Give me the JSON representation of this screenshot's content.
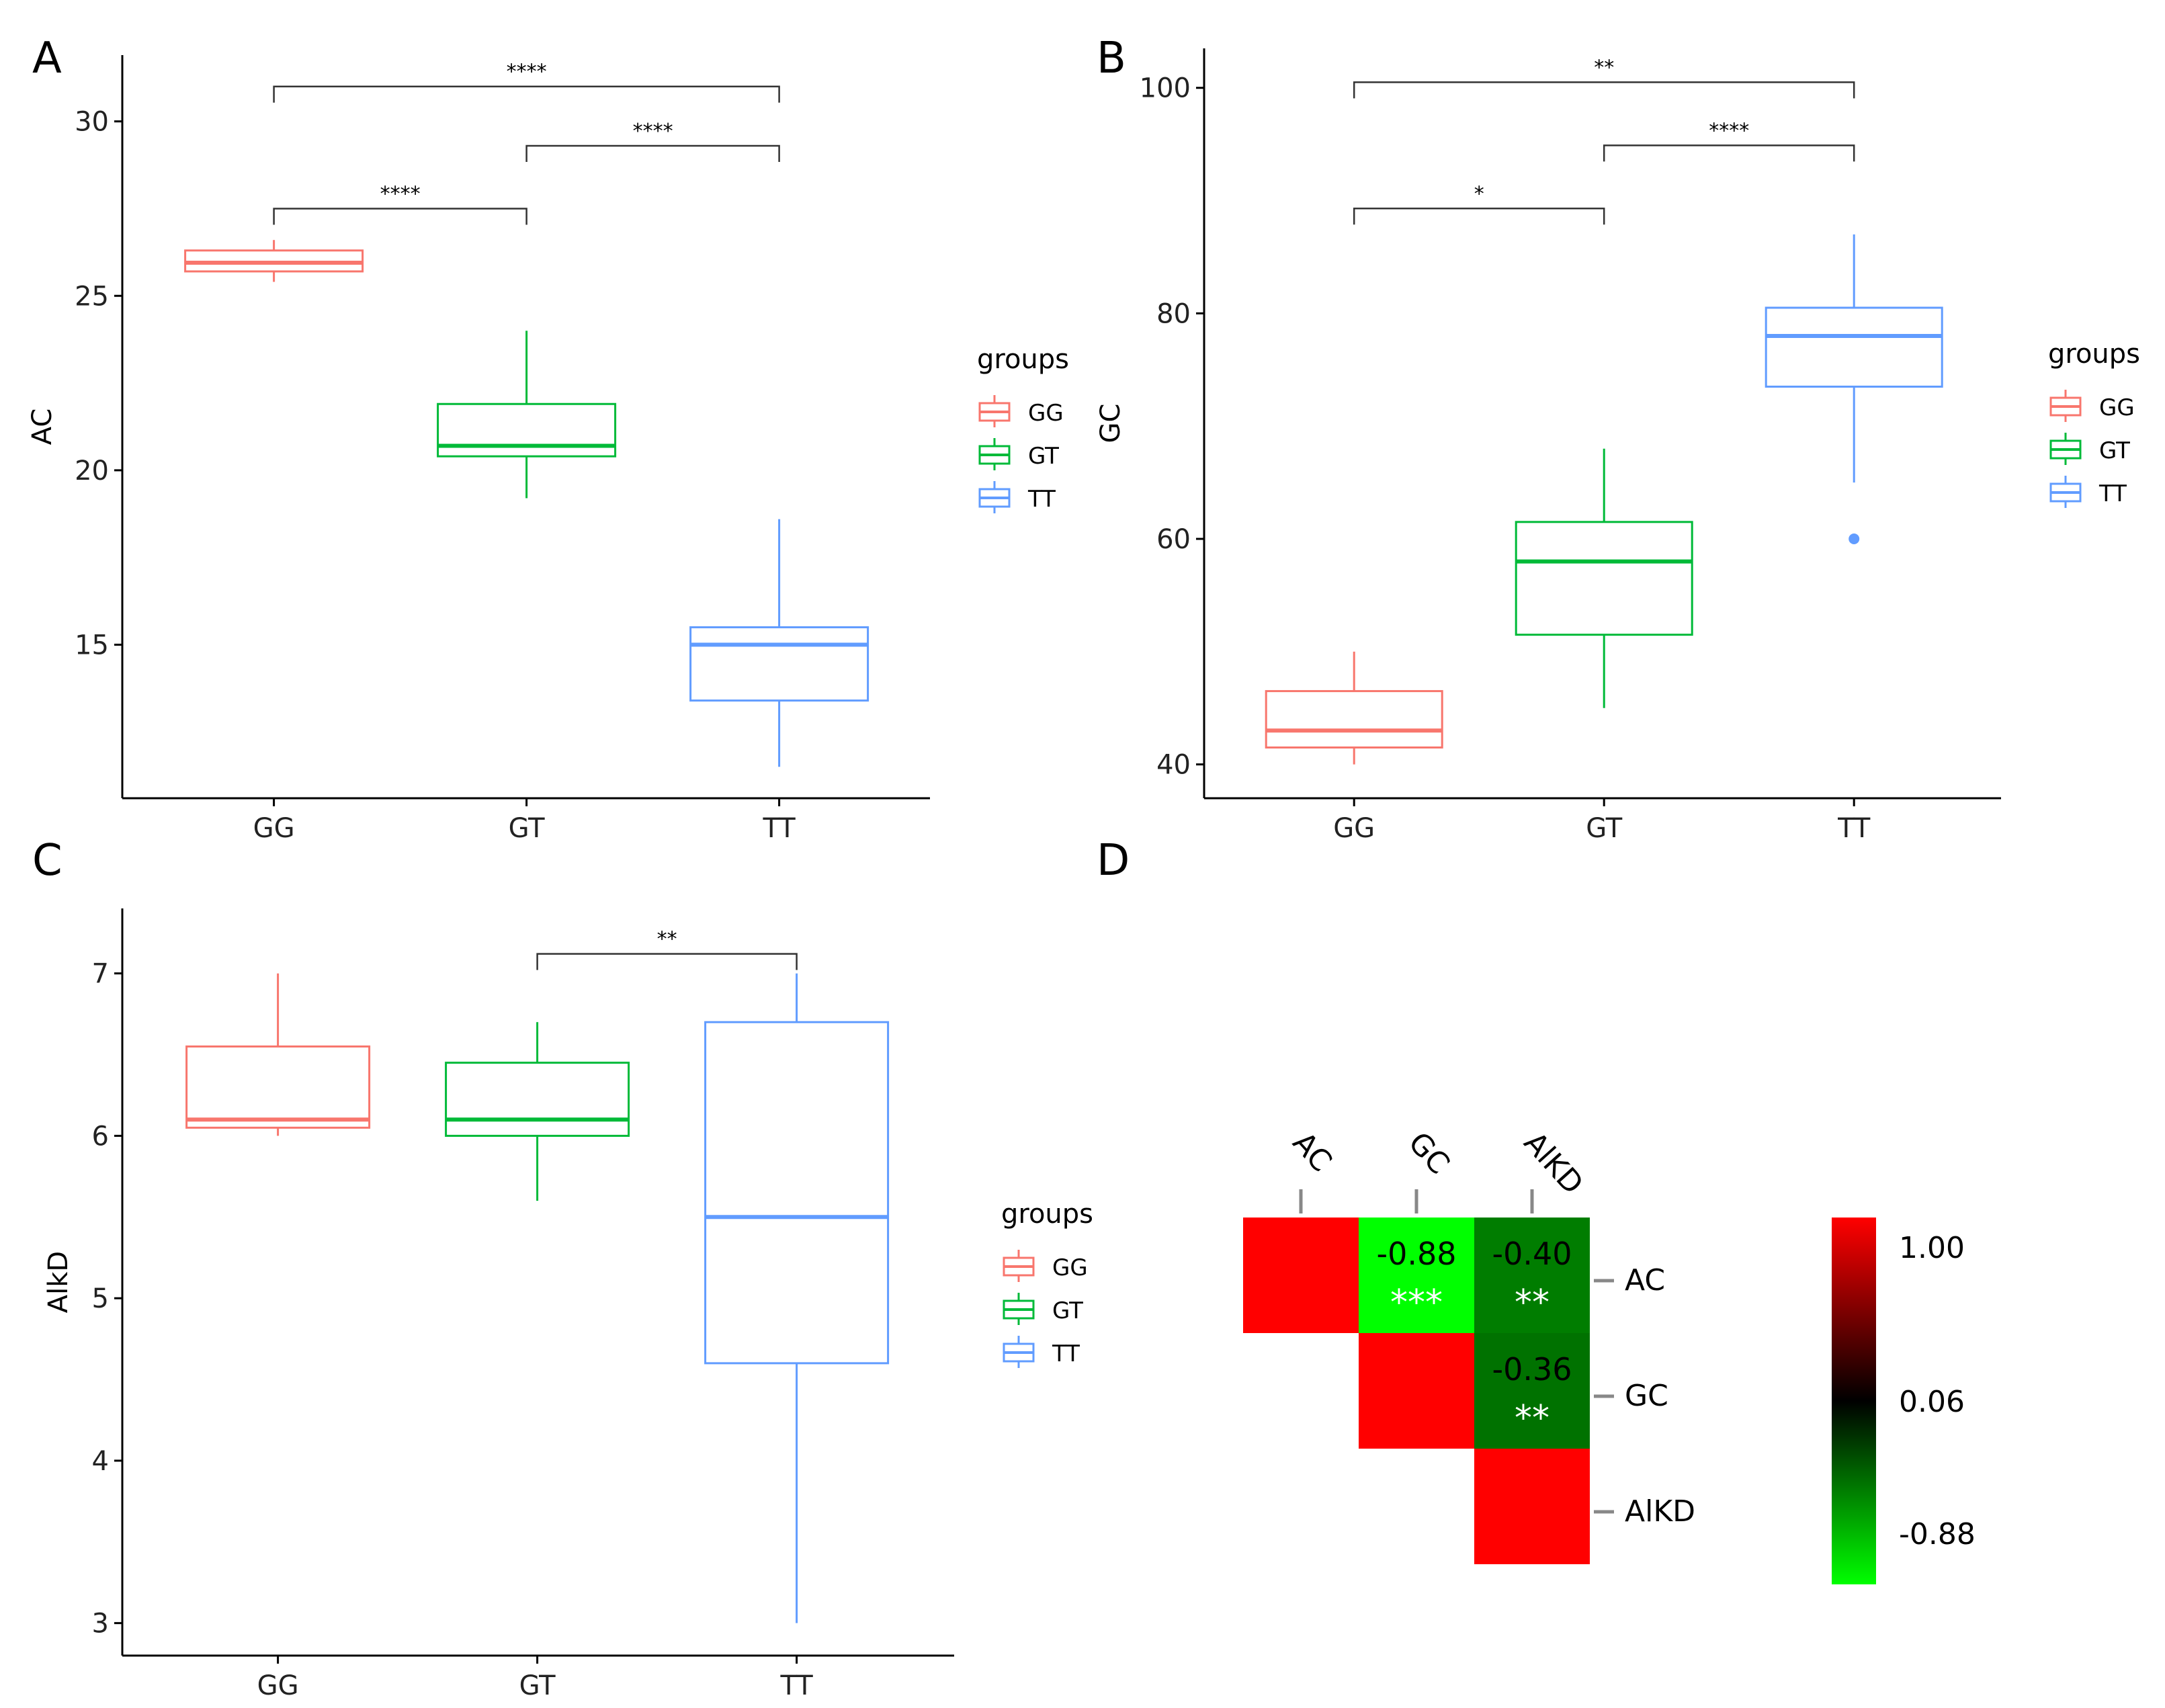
{
  "chart_data": [
    {
      "panel": "A",
      "type": "box",
      "xlabel": "",
      "ylabel": "AC",
      "categories": [
        "GG",
        "GT",
        "TT"
      ],
      "yticks": [
        15,
        20,
        25,
        30
      ],
      "ylim": [
        10.6,
        31.9
      ],
      "boxes": [
        {
          "group": "GG",
          "min": 25.4,
          "q1": 25.7,
          "median": 25.95,
          "q3": 26.3,
          "max": 26.6,
          "outliers": []
        },
        {
          "group": "GT",
          "min": 19.2,
          "q1": 20.4,
          "median": 20.7,
          "q3": 21.9,
          "max": 24.0,
          "outliers": []
        },
        {
          "group": "TT",
          "min": 11.5,
          "q1": 13.4,
          "median": 15.0,
          "q3": 15.5,
          "max": 18.6,
          "outliers": []
        }
      ],
      "comparisons": [
        {
          "from": "GG",
          "to": "GT",
          "label": "****",
          "y": 27.5
        },
        {
          "from": "GT",
          "to": "TT",
          "label": "****",
          "y": 29.3
        },
        {
          "from": "GG",
          "to": "TT",
          "label": "****",
          "y": 31.0
        }
      ],
      "legend": {
        "title": "groups",
        "entries": [
          "GG",
          "GT",
          "TT"
        ],
        "placement": "right"
      }
    },
    {
      "panel": "B",
      "type": "box",
      "xlabel": "",
      "ylabel": "GC",
      "categories": [
        "GG",
        "GT",
        "TT"
      ],
      "yticks": [
        40,
        60,
        80,
        100
      ],
      "ylim": [
        37,
        103.5
      ],
      "boxes": [
        {
          "group": "GG",
          "min": 40.0,
          "q1": 41.5,
          "median": 43.0,
          "q3": 46.5,
          "max": 50.0,
          "outliers": []
        },
        {
          "group": "GT",
          "min": 45.0,
          "q1": 51.5,
          "median": 58.0,
          "q3": 61.5,
          "max": 68.0,
          "outliers": []
        },
        {
          "group": "TT",
          "min": 65.0,
          "q1": 73.5,
          "median": 78.0,
          "q3": 80.5,
          "max": 87.0,
          "outliers": [
            60.0
          ]
        }
      ],
      "comparisons": [
        {
          "from": "GG",
          "to": "GT",
          "label": "*",
          "y": 89.3
        },
        {
          "from": "GT",
          "to": "TT",
          "label": "****",
          "y": 94.9
        },
        {
          "from": "GG",
          "to": "TT",
          "label": "**",
          "y": 100.5
        }
      ],
      "legend": {
        "title": "groups",
        "entries": [
          "GG",
          "GT",
          "TT"
        ],
        "placement": "right"
      }
    },
    {
      "panel": "C",
      "type": "box",
      "xlabel": "",
      "ylabel": "AlkD",
      "categories": [
        "GG",
        "GT",
        "TT"
      ],
      "yticks": [
        3,
        4,
        5,
        6,
        7
      ],
      "ylim": [
        2.8,
        7.4
      ],
      "boxes": [
        {
          "group": "GG",
          "min": 6.0,
          "q1": 6.05,
          "median": 6.1,
          "q3": 6.55,
          "max": 7.0,
          "outliers": []
        },
        {
          "group": "GT",
          "min": 5.6,
          "q1": 6.0,
          "median": 6.1,
          "q3": 6.45,
          "max": 6.7,
          "outliers": []
        },
        {
          "group": "TT",
          "min": 3.0,
          "q1": 4.6,
          "median": 5.5,
          "q3": 6.7,
          "max": 7.0,
          "outliers": []
        }
      ],
      "comparisons": [
        {
          "from": "GT",
          "to": "TT",
          "label": "**",
          "y": 7.12
        }
      ],
      "legend": {
        "title": "groups",
        "entries": [
          "GG",
          "GT",
          "TT"
        ],
        "placement": "right"
      }
    },
    {
      "panel": "D",
      "type": "heatmap",
      "variables": [
        "AC",
        "GC",
        "AlKD"
      ],
      "column_labels": [
        "AC",
        "GC",
        "AlKD"
      ],
      "row_labels": [
        "AC",
        "GC",
        "AlKD"
      ],
      "cells": [
        {
          "row": 0,
          "col": 0,
          "value": 1.0,
          "text": "",
          "stars": ""
        },
        {
          "row": 0,
          "col": 1,
          "value": -0.88,
          "text": "-0.88",
          "stars": "***"
        },
        {
          "row": 0,
          "col": 2,
          "value": -0.4,
          "text": "-0.40",
          "stars": "**"
        },
        {
          "row": 1,
          "col": 1,
          "value": 1.0,
          "text": "",
          "stars": ""
        },
        {
          "row": 1,
          "col": 2,
          "value": -0.36,
          "text": "-0.36",
          "stars": "**"
        },
        {
          "row": 2,
          "col": 2,
          "value": 1.0,
          "text": "",
          "stars": ""
        }
      ],
      "colorbar": {
        "ticks": [
          "1.00",
          "0.06",
          "-0.88"
        ],
        "min": -0.88,
        "mid": 0.06,
        "max": 1.0,
        "colors": {
          "low": "#00ff00",
          "mid": "#000000",
          "high": "#ff0000"
        }
      }
    }
  ],
  "colors": {
    "GG": "#f8766d",
    "GT": "#00ba38",
    "TT": "#619cff",
    "outlier": "#619cff"
  },
  "panels": {
    "a": "A",
    "b": "B",
    "c": "C",
    "d": "D"
  }
}
